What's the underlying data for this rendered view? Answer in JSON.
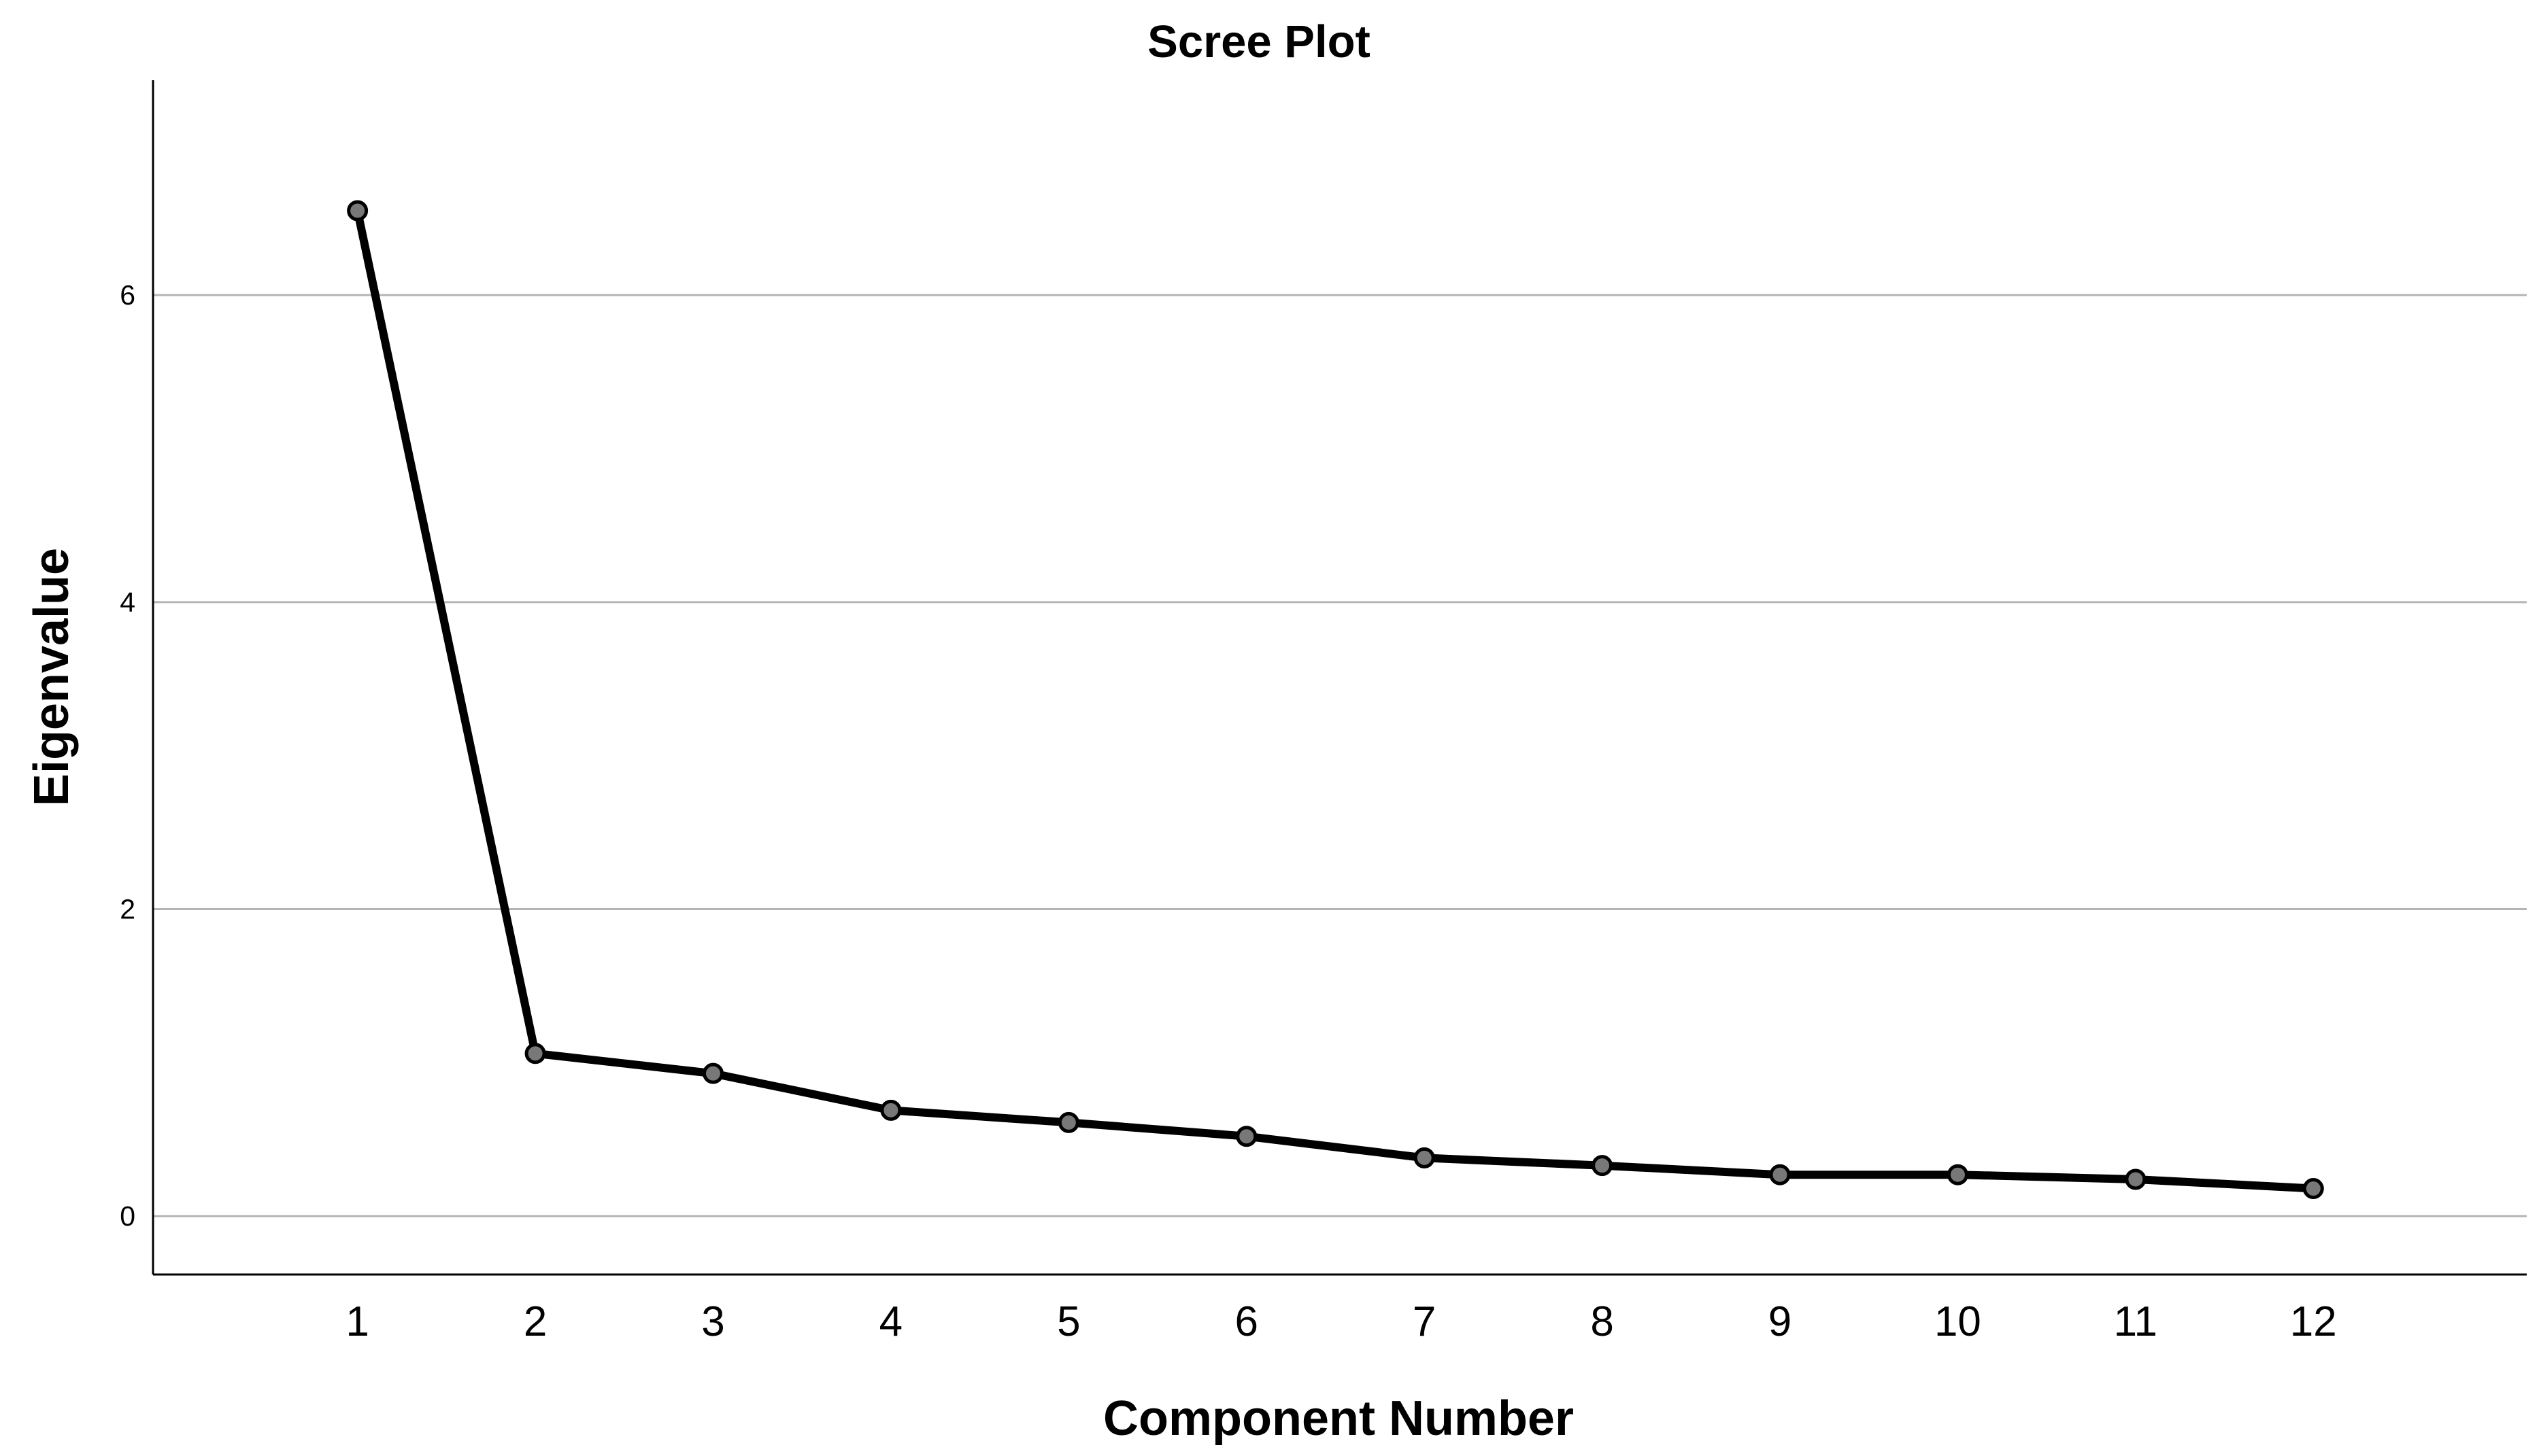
{
  "chart_data": {
    "type": "line",
    "title": "Scree Plot",
    "xlabel": "Component Number",
    "ylabel": "Eigenvalue",
    "x": [
      1,
      2,
      3,
      4,
      5,
      6,
      7,
      8,
      9,
      10,
      11,
      12
    ],
    "x_tick_labels": [
      "1",
      "2",
      "3",
      "4",
      "5",
      "6",
      "7",
      "8",
      "9",
      "10",
      "11",
      "12"
    ],
    "series": [
      {
        "values": [
          6.55,
          1.06,
          0.93,
          0.69,
          0.61,
          0.52,
          0.38,
          0.33,
          0.27,
          0.27,
          0.24,
          0.18
        ]
      }
    ],
    "y_ticks": [
      0,
      2,
      4,
      6
    ],
    "y_tick_labels": [
      "0",
      "2",
      "4",
      "6"
    ],
    "xlim": [
      -0.15,
      13.2
    ],
    "ylim": [
      -0.38,
      7.4
    ],
    "grid": true,
    "legend": false,
    "colors": {
      "line": "#000000",
      "marker_fill": "#787878",
      "marker_stroke": "#000000",
      "grid": "#b4b4b4",
      "axis": "#000000",
      "background": "#ffffff"
    }
  }
}
